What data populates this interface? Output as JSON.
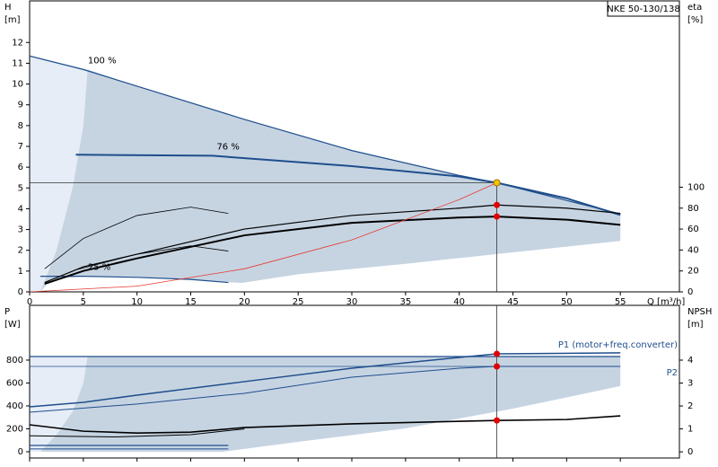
{
  "chart_data": [
    {
      "type": "line",
      "title": "NKE 50-130/138",
      "ylabel": "H",
      "yunit": "[m]",
      "y2label": "eta",
      "y2unit": "[%]",
      "xlabel": "Q [m³/h]",
      "xlim": [
        0,
        60.5
      ],
      "ylim": [
        0,
        14
      ],
      "y2lim": [
        0,
        278
      ],
      "xticks": [
        0,
        5,
        10,
        15,
        20,
        25,
        30,
        35,
        40,
        45,
        50,
        55
      ],
      "yticks": [
        0,
        1,
        2,
        3,
        4,
        5,
        6,
        7,
        8,
        9,
        10,
        11,
        12
      ],
      "y2ticks": [
        0,
        20,
        40,
        60,
        80,
        100
      ],
      "areas": [
        {
          "color": "#e6edf6",
          "x": [
            0,
            5.4,
            5,
            4,
            2.5,
            1,
            0
          ],
          "values": [
            11.35,
            10.7,
            8,
            5,
            2,
            0,
            0
          ]
        },
        {
          "color": "#c6d4e2",
          "x": [
            5.4,
            10,
            20,
            30,
            40,
            43.5,
            50,
            55,
            55,
            45,
            35,
            25,
            19.8,
            10,
            5,
            2,
            1,
            2.5,
            4,
            5
          ],
          "values": [
            10.7,
            9.9,
            8.3,
            6.8,
            5.6,
            5.25,
            4.4,
            3.75,
            2.45,
            1.9,
            1.35,
            0.85,
            0.43,
            0.7,
            0.75,
            0.6,
            0,
            2,
            5,
            8
          ]
        }
      ],
      "series": [
        {
          "name": "100 %",
          "color": "#1f4e8c",
          "width": 1.2,
          "x": [
            0,
            5,
            10,
            20,
            30,
            40,
            43.5,
            50,
            55
          ],
          "values": [
            11.35,
            10.7,
            9.9,
            8.3,
            6.8,
            5.6,
            5.25,
            4.4,
            3.75
          ]
        },
        {
          "name": "76 %",
          "color": "#1f4e8c",
          "width": 2,
          "x": [
            4.3,
            17,
            30,
            40,
            43.5,
            50,
            55
          ],
          "values": [
            6.6,
            6.55,
            6.05,
            5.55,
            5.25,
            4.5,
            3.7
          ]
        },
        {
          "name": "25 %",
          "color": "#1f4e8c",
          "width": 1.2,
          "x": [
            1,
            5,
            10,
            15,
            18.5
          ],
          "values": [
            0.75,
            0.75,
            0.7,
            0.6,
            0.45
          ]
        },
        {
          "axis": "y2",
          "color": "#000000",
          "width": 2,
          "x": [
            1.4,
            5,
            10,
            20,
            30,
            40,
            43.5,
            50,
            55
          ],
          "values": [
            7.7,
            20,
            32,
            54,
            66,
            71,
            72,
            69,
            64
          ]
        },
        {
          "axis": "y2",
          "color": "#000000",
          "width": 1.2,
          "x": [
            1.4,
            5,
            10,
            20,
            30,
            40,
            43.5,
            50,
            55
          ],
          "values": [
            9,
            24,
            36,
            60,
            73,
            80,
            83,
            80,
            75
          ]
        },
        {
          "axis": "y2",
          "color": "#000000",
          "width": 0.8,
          "x": [
            1.4,
            5,
            10,
            15,
            18.5
          ],
          "values": [
            22,
            51,
            73,
            81,
            75
          ]
        },
        {
          "axis": "y2",
          "color": "#000000",
          "width": 0.8,
          "x": [
            4.3,
            10,
            15,
            18.5
          ],
          "values": [
            21,
            36,
            44,
            39
          ]
        },
        {
          "color": "#e8382f",
          "width": 0.8,
          "x": [
            0,
            10,
            20,
            30,
            40,
            43.5
          ],
          "values": [
            0,
            0.277,
            1.11,
            2.5,
            4.44,
            5.25
          ]
        }
      ],
      "markers": [
        {
          "x": 43.5,
          "y": 5.25,
          "color": "#f5c400",
          "guide": "xy"
        },
        {
          "x": 43.5,
          "y": 83,
          "axis": "y2",
          "color": "#e00000"
        },
        {
          "x": 43.5,
          "y": 72,
          "axis": "y2",
          "color": "#e00000"
        }
      ]
    },
    {
      "type": "line",
      "ylabel": "P",
      "yunit": "[W]",
      "y2label": "NPSH",
      "y2unit": "[m]",
      "xlim": [
        0,
        60.5
      ],
      "ylim": [
        -55,
        1278
      ],
      "y2lim": [
        -0.27,
        6.39
      ],
      "xticks": [
        0,
        5,
        10,
        15,
        20,
        25,
        30,
        35,
        40,
        45,
        50,
        55
      ],
      "yticks": [
        0,
        200,
        400,
        600,
        800
      ],
      "y2ticks": [
        0,
        1,
        2,
        3,
        4
      ],
      "areas": [
        {
          "color": "#e6edf6",
          "x": [
            0,
            5.4,
            5,
            4,
            2.5,
            1,
            0
          ],
          "values": [
            831,
            831,
            600,
            350,
            150,
            0,
            0
          ]
        },
        {
          "color": "#c6d4e2",
          "x": [
            5.4,
            55,
            55,
            45,
            35,
            25,
            18,
            1,
            2.5,
            4,
            5
          ],
          "values": [
            831,
            831,
            573,
            376,
            204,
            86,
            0,
            0,
            150,
            350,
            600
          ]
        }
      ],
      "series": [
        {
          "name": "P1 (motor+freq.converter)",
          "color": "#1f4e8c",
          "width": 1.5,
          "x": [
            0,
            5,
            10,
            20,
            30,
            40,
            43.5,
            55
          ],
          "values": [
            392,
            431,
            494,
            612,
            729,
            823,
            855,
            863
          ]
        },
        {
          "name": "P2",
          "color": "#1f4e8c",
          "width": 1,
          "x": [
            0,
            10,
            20,
            30,
            40,
            43.5,
            55
          ],
          "values": [
            345,
            416,
            510,
            651,
            729,
            745,
            745
          ]
        },
        {
          "color": "#1f4e8c",
          "width": 1.2,
          "x": [
            0,
            55
          ],
          "values": [
            831,
            831
          ]
        },
        {
          "color": "#1f4e8c",
          "width": 0.8,
          "x": [
            0,
            55
          ],
          "values": [
            745,
            745
          ]
        },
        {
          "axis": "y2",
          "color": "#000000",
          "width": 1.6,
          "x": [
            0,
            5,
            10,
            15,
            20,
            30,
            43.5,
            50,
            55
          ],
          "values": [
            1.18,
            0.9,
            0.82,
            0.86,
            1.06,
            1.22,
            1.37,
            1.41,
            1.57
          ]
        },
        {
          "axis": "y2",
          "color": "#000000",
          "width": 1,
          "x": [
            0,
            8,
            15,
            20
          ],
          "values": [
            0.7,
            0.65,
            0.75,
            1.0
          ]
        },
        {
          "color": "#1f4e8c",
          "width": 1.2,
          "x": [
            0,
            18.5
          ],
          "values": [
            55,
            55
          ]
        },
        {
          "color": "#1f4e8c",
          "width": 1,
          "x": [
            0,
            18.5
          ],
          "values": [
            24,
            24
          ]
        }
      ],
      "markers": [
        {
          "x": 43.5,
          "y": 855,
          "color": "#e00000",
          "guide": "x"
        },
        {
          "x": 43.5,
          "y": 745,
          "color": "#e00000"
        },
        {
          "x": 43.5,
          "y": 1.37,
          "axis": "y2",
          "color": "#e00000"
        }
      ]
    }
  ]
}
